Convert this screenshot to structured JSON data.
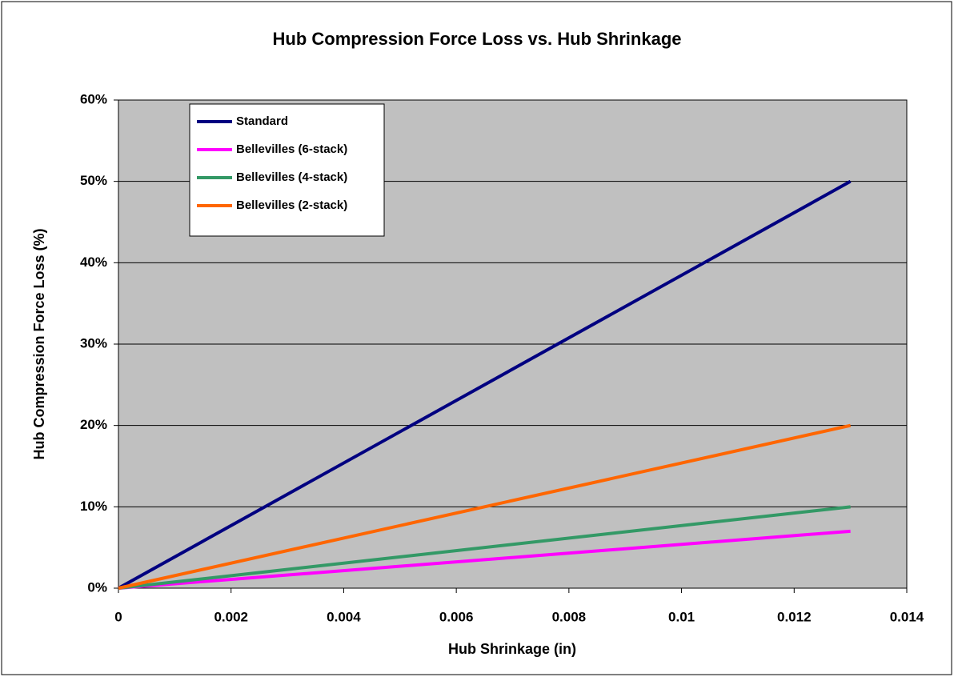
{
  "chart_data": {
    "type": "line",
    "title": "Hub Compression Force Loss vs. Hub Shrinkage",
    "x_label": "Hub Shrinkage (in)",
    "y_label": "Hub Compression Force Loss (%)",
    "x": [
      0,
      0.013
    ],
    "series": [
      {
        "name": "Standard",
        "color": "#000080",
        "values": [
          0,
          50
        ]
      },
      {
        "name": "Bellevilles (6-stack)",
        "color": "#ff00ff",
        "values": [
          0,
          7
        ]
      },
      {
        "name": "Bellevilles (4-stack)",
        "color": "#339966",
        "values": [
          0,
          10
        ]
      },
      {
        "name": "Bellevilles (2-stack)",
        "color": "#ff6600",
        "values": [
          0,
          20
        ]
      }
    ],
    "xlim": [
      0,
      0.014
    ],
    "xticks": [
      0,
      0.002,
      0.004,
      0.006,
      0.008,
      0.01,
      0.012,
      0.014
    ],
    "ylim": [
      0,
      60
    ],
    "yticks": [
      {
        "value": 0,
        "label": "0%"
      },
      {
        "value": 10,
        "label": "10%"
      },
      {
        "value": 20,
        "label": "20%"
      },
      {
        "value": 30,
        "label": "30%"
      },
      {
        "value": 40,
        "label": "40%"
      },
      {
        "value": 50,
        "label": "50%"
      },
      {
        "value": 60,
        "label": "60%"
      }
    ],
    "grid": true,
    "legend": "upper left",
    "plot_background": "#c0c0c0"
  }
}
